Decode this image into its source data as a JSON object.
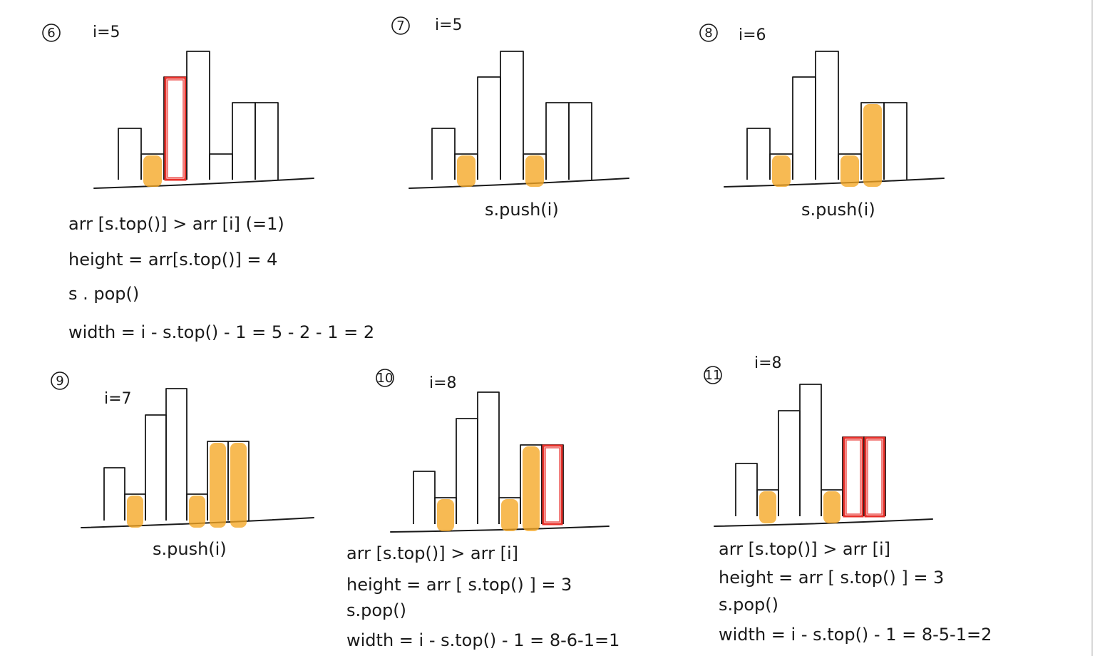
{
  "colors": {
    "ink": "#1a1a1a",
    "highlight": "#f5a623",
    "window": "#e8302a",
    "paper": "#ffffff"
  },
  "panels": [
    {
      "step": "6",
      "index_label": "i=5",
      "bars": [
        {
          "height": 2,
          "state": "plain"
        },
        {
          "height": 1,
          "state": "stack"
        },
        {
          "height": 4,
          "state": "window"
        },
        {
          "height": 5,
          "state": "plain"
        },
        {
          "height": 1,
          "state": "plain"
        },
        {
          "height": 3,
          "state": "plain"
        },
        {
          "height": 3,
          "state": "plain"
        }
      ],
      "notes": [
        "arr [s.top()] > arr [i] (=1)",
        "height = arr[s.top()] = 4",
        "s . pop()",
        "width = i - s.top() - 1 = 5 - 2 - 1 = 2"
      ]
    },
    {
      "step": "7",
      "index_label": "i=5",
      "bars": [
        {
          "height": 2,
          "state": "plain"
        },
        {
          "height": 1,
          "state": "stack"
        },
        {
          "height": 4,
          "state": "plain"
        },
        {
          "height": 5,
          "state": "plain"
        },
        {
          "height": 1,
          "state": "stack"
        },
        {
          "height": 3,
          "state": "plain"
        },
        {
          "height": 3,
          "state": "plain"
        }
      ],
      "notes": [
        "s.push(i)"
      ]
    },
    {
      "step": "8",
      "index_label": "i=6",
      "bars": [
        {
          "height": 2,
          "state": "plain"
        },
        {
          "height": 1,
          "state": "stack"
        },
        {
          "height": 4,
          "state": "plain"
        },
        {
          "height": 5,
          "state": "plain"
        },
        {
          "height": 1,
          "state": "stack"
        },
        {
          "height": 3,
          "state": "stack"
        },
        {
          "height": 3,
          "state": "plain"
        }
      ],
      "notes": [
        "s.push(i)"
      ]
    },
    {
      "step": "9",
      "index_label": "i=7",
      "bars": [
        {
          "height": 2,
          "state": "plain"
        },
        {
          "height": 1,
          "state": "stack"
        },
        {
          "height": 4,
          "state": "plain"
        },
        {
          "height": 5,
          "state": "plain"
        },
        {
          "height": 1,
          "state": "stack"
        },
        {
          "height": 3,
          "state": "stack"
        },
        {
          "height": 3,
          "state": "stack"
        }
      ],
      "notes": [
        "s.push(i)"
      ]
    },
    {
      "step": "10",
      "index_label": "i=8",
      "bars": [
        {
          "height": 2,
          "state": "plain"
        },
        {
          "height": 1,
          "state": "stack"
        },
        {
          "height": 4,
          "state": "plain"
        },
        {
          "height": 5,
          "state": "plain"
        },
        {
          "height": 1,
          "state": "stack"
        },
        {
          "height": 3,
          "state": "stack"
        },
        {
          "height": 3,
          "state": "window"
        }
      ],
      "notes": [
        "arr [s.top()] > arr [i]",
        "height = arr [ s.top() ] = 3",
        "s.pop()",
        "width = i - s.top() - 1 = 8-6-1=1"
      ]
    },
    {
      "step": "11",
      "index_label": "i=8",
      "bars": [
        {
          "height": 2,
          "state": "plain"
        },
        {
          "height": 1,
          "state": "stack"
        },
        {
          "height": 4,
          "state": "plain"
        },
        {
          "height": 5,
          "state": "plain"
        },
        {
          "height": 1,
          "state": "stack"
        },
        {
          "height": 3,
          "state": "window"
        },
        {
          "height": 3,
          "state": "window"
        }
      ],
      "notes": [
        "arr [s.top()] > arr [i]",
        "height = arr [ s.top() ] = 3",
        "s.pop()",
        "width = i - s.top() - 1 = 8-5-1=2"
      ]
    }
  ]
}
